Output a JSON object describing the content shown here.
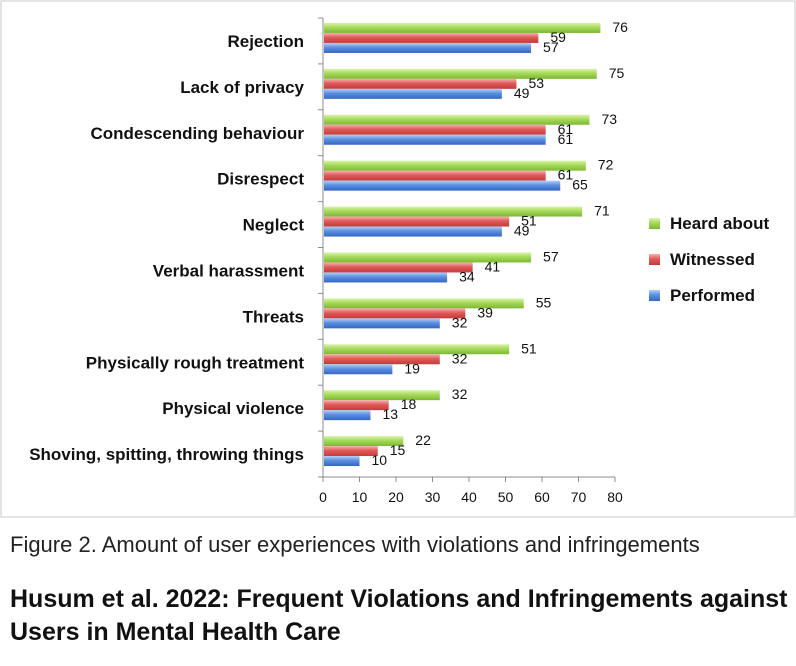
{
  "chart_data": {
    "type": "bar",
    "orientation": "horizontal",
    "categories": [
      "Rejection",
      "Lack of privacy",
      "Condescending behaviour",
      "Disrespect",
      "Neglect",
      "Verbal harassment",
      "Threats",
      "Physically rough treatment",
      "Physical violence",
      "Shoving, spitting, throwing things"
    ],
    "series": [
      {
        "name": "Heard about",
        "color": "#9bd04a",
        "values": [
          76,
          75,
          73,
          72,
          71,
          57,
          55,
          51,
          32,
          22
        ]
      },
      {
        "name": "Witnessed",
        "color": "#e05050",
        "values": [
          59,
          53,
          61,
          61,
          51,
          41,
          39,
          32,
          18,
          15
        ]
      },
      {
        "name": "Performed",
        "color": "#4a7fd6",
        "values": [
          57,
          49,
          61,
          65,
          49,
          34,
          32,
          19,
          13,
          10
        ]
      }
    ],
    "xlim": [
      0,
      80
    ],
    "xticks": [
      "0",
      "10",
      "20",
      "30",
      "40",
      "50",
      "60",
      "70",
      "80"
    ],
    "grid": false,
    "legend_position": "right",
    "data_labels": true
  },
  "caption": "Figure 2. Amount of user experiences with violations and infringements",
  "source_title": "Husum et al. 2022: Frequent Violations and Infringements against Users in Mental Health Care"
}
